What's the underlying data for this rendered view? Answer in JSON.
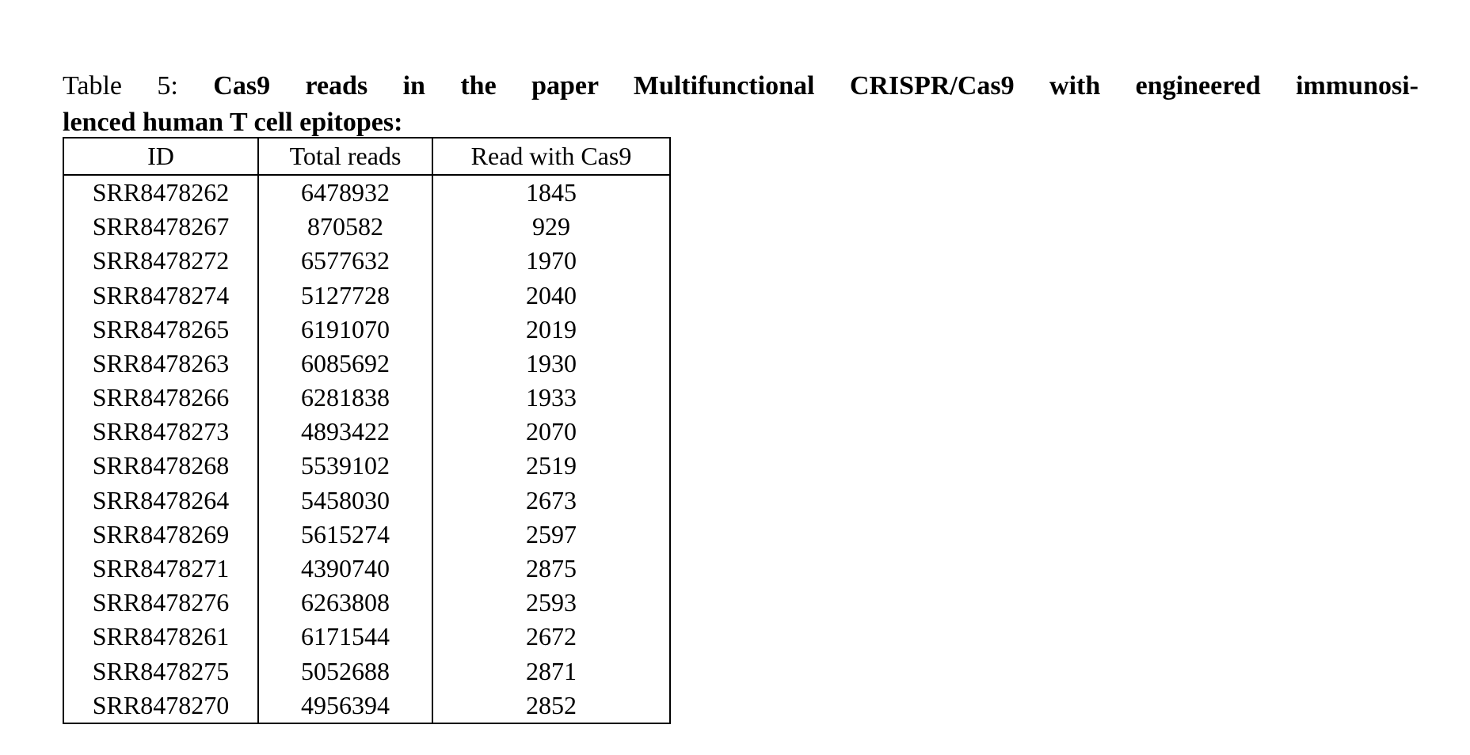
{
  "caption": {
    "label": "Table 5:",
    "text_line1": "Cas9 reads in the paper Multifunctional CRISPR/Cas9 with engineered immunosi-",
    "text_line2": "lenced human T cell epitopes:"
  },
  "chart_data": {
    "type": "table",
    "title": "Table 5: Cas9 reads in the paper Multifunctional CRISPR/Cas9 with engineered immunosilenced human T cell epitopes",
    "columns": [
      "ID",
      "Total reads",
      "Read with Cas9"
    ],
    "rows": [
      [
        "SRR8478262",
        "6478932",
        "1845"
      ],
      [
        "SRR8478267",
        "870582",
        "929"
      ],
      [
        "SRR8478272",
        "6577632",
        "1970"
      ],
      [
        "SRR8478274",
        "5127728",
        "2040"
      ],
      [
        "SRR8478265",
        "6191070",
        "2019"
      ],
      [
        "SRR8478263",
        "6085692",
        "1930"
      ],
      [
        "SRR8478266",
        "6281838",
        "1933"
      ],
      [
        "SRR8478273",
        "4893422",
        "2070"
      ],
      [
        "SRR8478268",
        "5539102",
        "2519"
      ],
      [
        "SRR8478264",
        "5458030",
        "2673"
      ],
      [
        "SRR8478269",
        "5615274",
        "2597"
      ],
      [
        "SRR8478271",
        "4390740",
        "2875"
      ],
      [
        "SRR8478276",
        "6263808",
        "2593"
      ],
      [
        "SRR8478261",
        "6171544",
        "2672"
      ],
      [
        "SRR8478275",
        "5052688",
        "2871"
      ],
      [
        "SRR8478270",
        "4956394",
        "2852"
      ]
    ]
  },
  "colors": {
    "text": "#000000",
    "background": "#ffffff",
    "border": "#000000"
  }
}
